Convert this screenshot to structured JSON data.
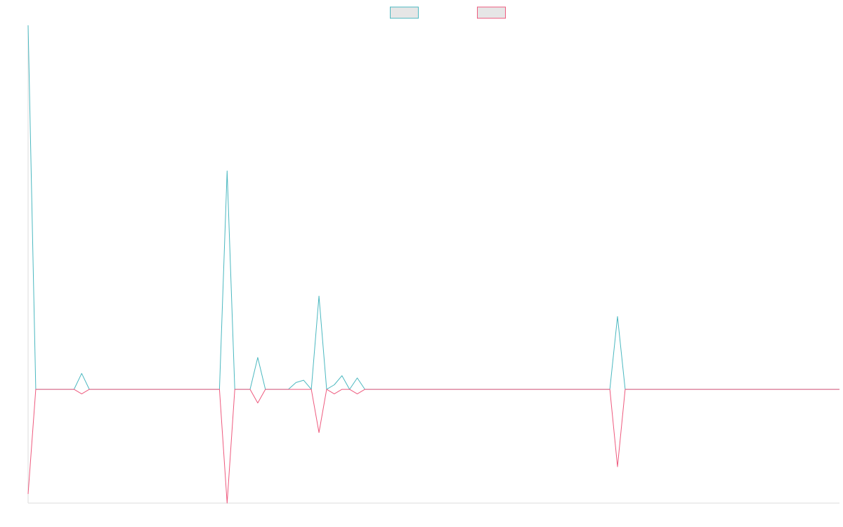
{
  "chart_data": {
    "type": "line",
    "title": "",
    "xlabel": "",
    "ylabel": "",
    "grid": false,
    "legend_placement": "top-center",
    "show_tick_labels": false,
    "y_range": [
      -0.5,
      1.6
    ],
    "series": [
      {
        "label": "",
        "color": "#4bb8c0",
        "legend_fill": "#e6e6e6",
        "values": [
          1.6,
          0,
          0,
          0,
          0,
          0,
          0,
          0.07,
          0,
          0,
          0,
          0,
          0,
          0,
          0,
          0,
          0,
          0,
          0,
          0,
          0,
          0,
          0,
          0,
          0,
          0,
          0.96,
          0,
          0,
          0,
          0.14,
          0,
          0,
          0,
          0,
          0.03,
          0.04,
          0,
          0.41,
          0,
          0.02,
          0.06,
          0,
          0.05,
          0,
          0,
          0,
          0,
          0,
          0,
          0,
          0,
          0,
          0,
          0,
          0,
          0,
          0,
          0,
          0,
          0,
          0,
          0,
          0,
          0,
          0,
          0,
          0,
          0,
          0,
          0,
          0,
          0,
          0,
          0,
          0,
          0,
          0.32,
          0,
          0,
          0,
          0,
          0,
          0,
          0,
          0,
          0,
          0,
          0,
          0,
          0,
          0,
          0,
          0,
          0,
          0,
          0,
          0,
          0,
          0,
          0,
          0,
          0,
          0,
          0,
          0,
          0
        ]
      },
      {
        "label": "",
        "color": "#ee5a7e",
        "legend_fill": "#e6e6e6",
        "values": [
          -0.46,
          0,
          0,
          0,
          0,
          0,
          0,
          -0.02,
          0,
          0,
          0,
          0,
          0,
          0,
          0,
          0,
          0,
          0,
          0,
          0,
          0,
          0,
          0,
          0,
          0,
          0,
          -0.5,
          0,
          0,
          0,
          -0.06,
          0,
          0,
          0,
          0,
          0,
          0,
          0,
          -0.19,
          0,
          -0.02,
          0,
          0,
          -0.02,
          0,
          0,
          0,
          0,
          0,
          0,
          0,
          0,
          0,
          0,
          0,
          0,
          0,
          0,
          0,
          0,
          0,
          0,
          0,
          0,
          0,
          0,
          0,
          0,
          0,
          0,
          0,
          0,
          0,
          0,
          0,
          0,
          0,
          -0.34,
          0,
          0,
          0,
          0,
          0,
          0,
          0,
          0,
          0,
          0,
          0,
          0,
          0,
          0,
          0,
          0,
          0,
          0,
          0,
          0,
          0,
          0,
          0,
          0,
          0,
          0,
          0,
          0,
          0
        ]
      }
    ]
  }
}
